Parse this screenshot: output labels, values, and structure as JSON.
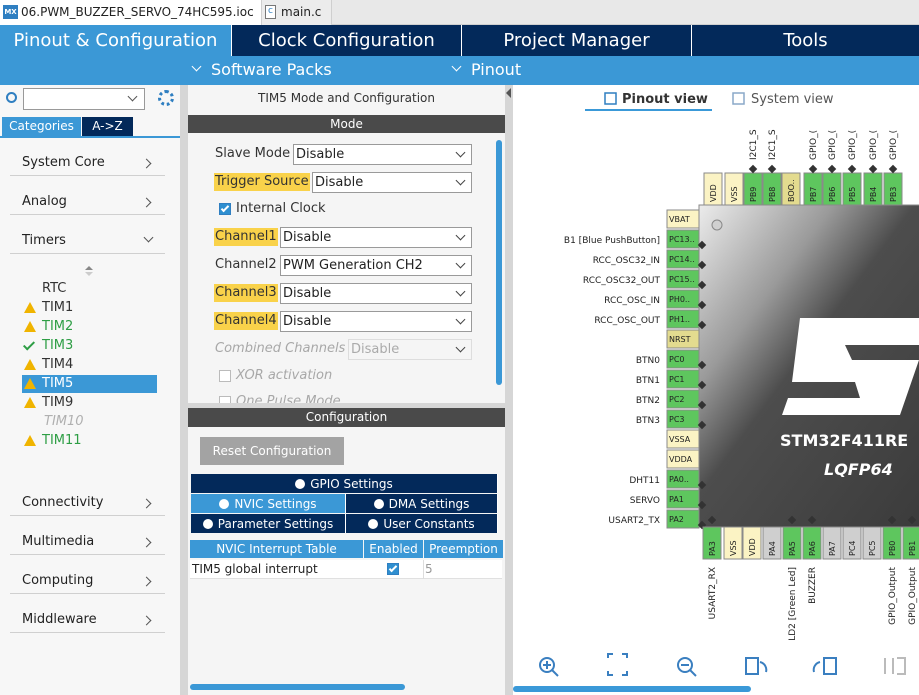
{
  "file_tabs": [
    {
      "icon": "MX",
      "name": "06.PWM_BUZZER_SERVO_74HC595.ioc"
    },
    {
      "icon": "c",
      "name": "main.c"
    }
  ],
  "main_tabs": [
    "Pinout & Configuration",
    "Clock Configuration",
    "Project Manager",
    "Tools"
  ],
  "sub_menu": [
    "Software Packs",
    "Pinout"
  ],
  "sidebar": {
    "tabs": [
      "Categories",
      "A->Z"
    ],
    "categories_top": [
      "System Core",
      "Analog",
      "Timers"
    ],
    "timers": [
      {
        "name": "RTC",
        "icon": null,
        "color": "#333333"
      },
      {
        "name": "TIM1",
        "icon": "warning",
        "color": "#333333"
      },
      {
        "name": "TIM2",
        "icon": "warning",
        "color": "#2e9e45"
      },
      {
        "name": "TIM3",
        "icon": "check",
        "color": "#2e9e45"
      },
      {
        "name": "TIM4",
        "icon": "warning",
        "color": "#333333"
      },
      {
        "name": "TIM5",
        "icon": "warning",
        "color": "#ffffff",
        "selected": true
      },
      {
        "name": "TIM9",
        "icon": "warning",
        "color": "#333333"
      },
      {
        "name": "TIM10",
        "icon": null,
        "color": "#b0b0b0",
        "disabled": true
      },
      {
        "name": "TIM11",
        "icon": "warning",
        "color": "#2e9e45"
      }
    ],
    "categories_bottom": [
      "Connectivity",
      "Multimedia",
      "Computing",
      "Middleware"
    ]
  },
  "mode_panel": {
    "title": "TIM5 Mode and Configuration",
    "section": "Mode",
    "fields": [
      {
        "label": "Slave Mode",
        "value": "Disable",
        "highlight": false
      },
      {
        "label": "Trigger Source",
        "value": "Disable",
        "highlight": true
      },
      {
        "checkbox": "Internal Clock",
        "checked": true
      },
      {
        "label": "Channel1",
        "value": "Disable",
        "highlight": true
      },
      {
        "label": "Channel2",
        "value": "PWM Generation CH2",
        "highlight": false
      },
      {
        "label": "Channel3",
        "value": "Disable",
        "highlight": true
      },
      {
        "label": "Channel4",
        "value": "Disable",
        "highlight": true
      },
      {
        "label": "Combined Channels",
        "value": "Disable",
        "highlight": false,
        "disabled": true
      },
      {
        "checkbox": "XOR activation",
        "checked": false,
        "disabled": true
      },
      {
        "checkbox": "One Pulse Mode",
        "checked": false,
        "disabled": true
      }
    ]
  },
  "config_panel": {
    "section": "Configuration",
    "reset_button": "Reset Configuration",
    "tab_rows": [
      [
        "GPIO Settings"
      ],
      [
        "NVIC Settings",
        "DMA Settings"
      ],
      [
        "Parameter Settings",
        "User Constants"
      ]
    ],
    "selected_tab": "NVIC Settings",
    "table": {
      "columns": [
        "NVIC Interrupt Table",
        "Enabled",
        "Preemption"
      ],
      "rows": [
        [
          "TIM5 global interrupt",
          true,
          5
        ]
      ]
    }
  },
  "pinout": {
    "views": [
      "Pinout view",
      "System view"
    ],
    "chip_name": "STM32F411RE",
    "package": "LQFP64",
    "top_pins": [
      {
        "name": "VDD",
        "label": null,
        "color": "#fbf3c4"
      },
      {
        "name": "VSS",
        "label": null,
        "color": "#fbf3c4"
      },
      {
        "name": "PB9",
        "label": "I2C1_S",
        "color": "#5ec65e"
      },
      {
        "name": "PB8",
        "label": "I2C1_S",
        "color": "#5ec65e"
      },
      {
        "name": "BOO..",
        "label": null,
        "color": "#e3db8f"
      },
      {
        "name": "PB7",
        "label": "GPIO_(",
        "color": "#5ec65e"
      },
      {
        "name": "PB6",
        "label": "GPIO_(",
        "color": "#5ec65e"
      },
      {
        "name": "PB5",
        "label": "GPIO_(",
        "color": "#5ec65e"
      },
      {
        "name": "PB4",
        "label": "GPIO_(",
        "color": "#5ec65e"
      },
      {
        "name": "PB3",
        "label": "GPIO_(",
        "color": "#5ec65e"
      }
    ],
    "left_pins": [
      {
        "name": "VBAT",
        "label": null,
        "color": "#fbf3c4"
      },
      {
        "name": "PC13..",
        "label": "B1 [Blue PushButton]",
        "color": "#5ec65e"
      },
      {
        "name": "PC14..",
        "label": "RCC_OSC32_IN",
        "color": "#5ec65e"
      },
      {
        "name": "PC15..",
        "label": "RCC_OSC32_OUT",
        "color": "#5ec65e"
      },
      {
        "name": "PH0..",
        "label": "RCC_OSC_IN",
        "color": "#5ec65e"
      },
      {
        "name": "PH1..",
        "label": "RCC_OSC_OUT",
        "color": "#5ec65e"
      },
      {
        "name": "NRST",
        "label": null,
        "color": "#e3db8f"
      },
      {
        "name": "PC0",
        "label": "BTN0",
        "color": "#5ec65e"
      },
      {
        "name": "PC1",
        "label": "BTN1",
        "color": "#5ec65e"
      },
      {
        "name": "PC2",
        "label": "BTN2",
        "color": "#5ec65e"
      },
      {
        "name": "PC3",
        "label": "BTN3",
        "color": "#5ec65e"
      },
      {
        "name": "VSSA",
        "label": null,
        "color": "#fbf3c4"
      },
      {
        "name": "VDDA",
        "label": null,
        "color": "#fbf3c4"
      },
      {
        "name": "PA0..",
        "label": "DHT11",
        "color": "#5ec65e"
      },
      {
        "name": "PA1",
        "label": "SERVO",
        "color": "#5ec65e"
      },
      {
        "name": "PA2",
        "label": "USART2_TX",
        "color": "#5ec65e"
      }
    ],
    "bottom_pins": [
      {
        "name": "PA3",
        "label": "USART2_RX",
        "color": "#5ec65e"
      },
      {
        "name": "VSS",
        "label": null,
        "color": "#fbf3c4"
      },
      {
        "name": "VDD",
        "label": null,
        "color": "#fbf3c4"
      },
      {
        "name": "PA4",
        "label": null,
        "color": "#cfcfcf"
      },
      {
        "name": "PA5",
        "label": "LD2 [Green Led]",
        "color": "#5ec65e"
      },
      {
        "name": "PA6",
        "label": "BUZZER",
        "color": "#5ec65e"
      },
      {
        "name": "PA7",
        "label": null,
        "color": "#cfcfcf"
      },
      {
        "name": "PC4",
        "label": null,
        "color": "#cfcfcf"
      },
      {
        "name": "PC5",
        "label": null,
        "color": "#cfcfcf"
      },
      {
        "name": "PB0",
        "label": "GPIO_Output",
        "color": "#5ec65e"
      },
      {
        "name": "PB1",
        "label": "GPIO_Output",
        "color": "#5ec65e"
      }
    ]
  }
}
